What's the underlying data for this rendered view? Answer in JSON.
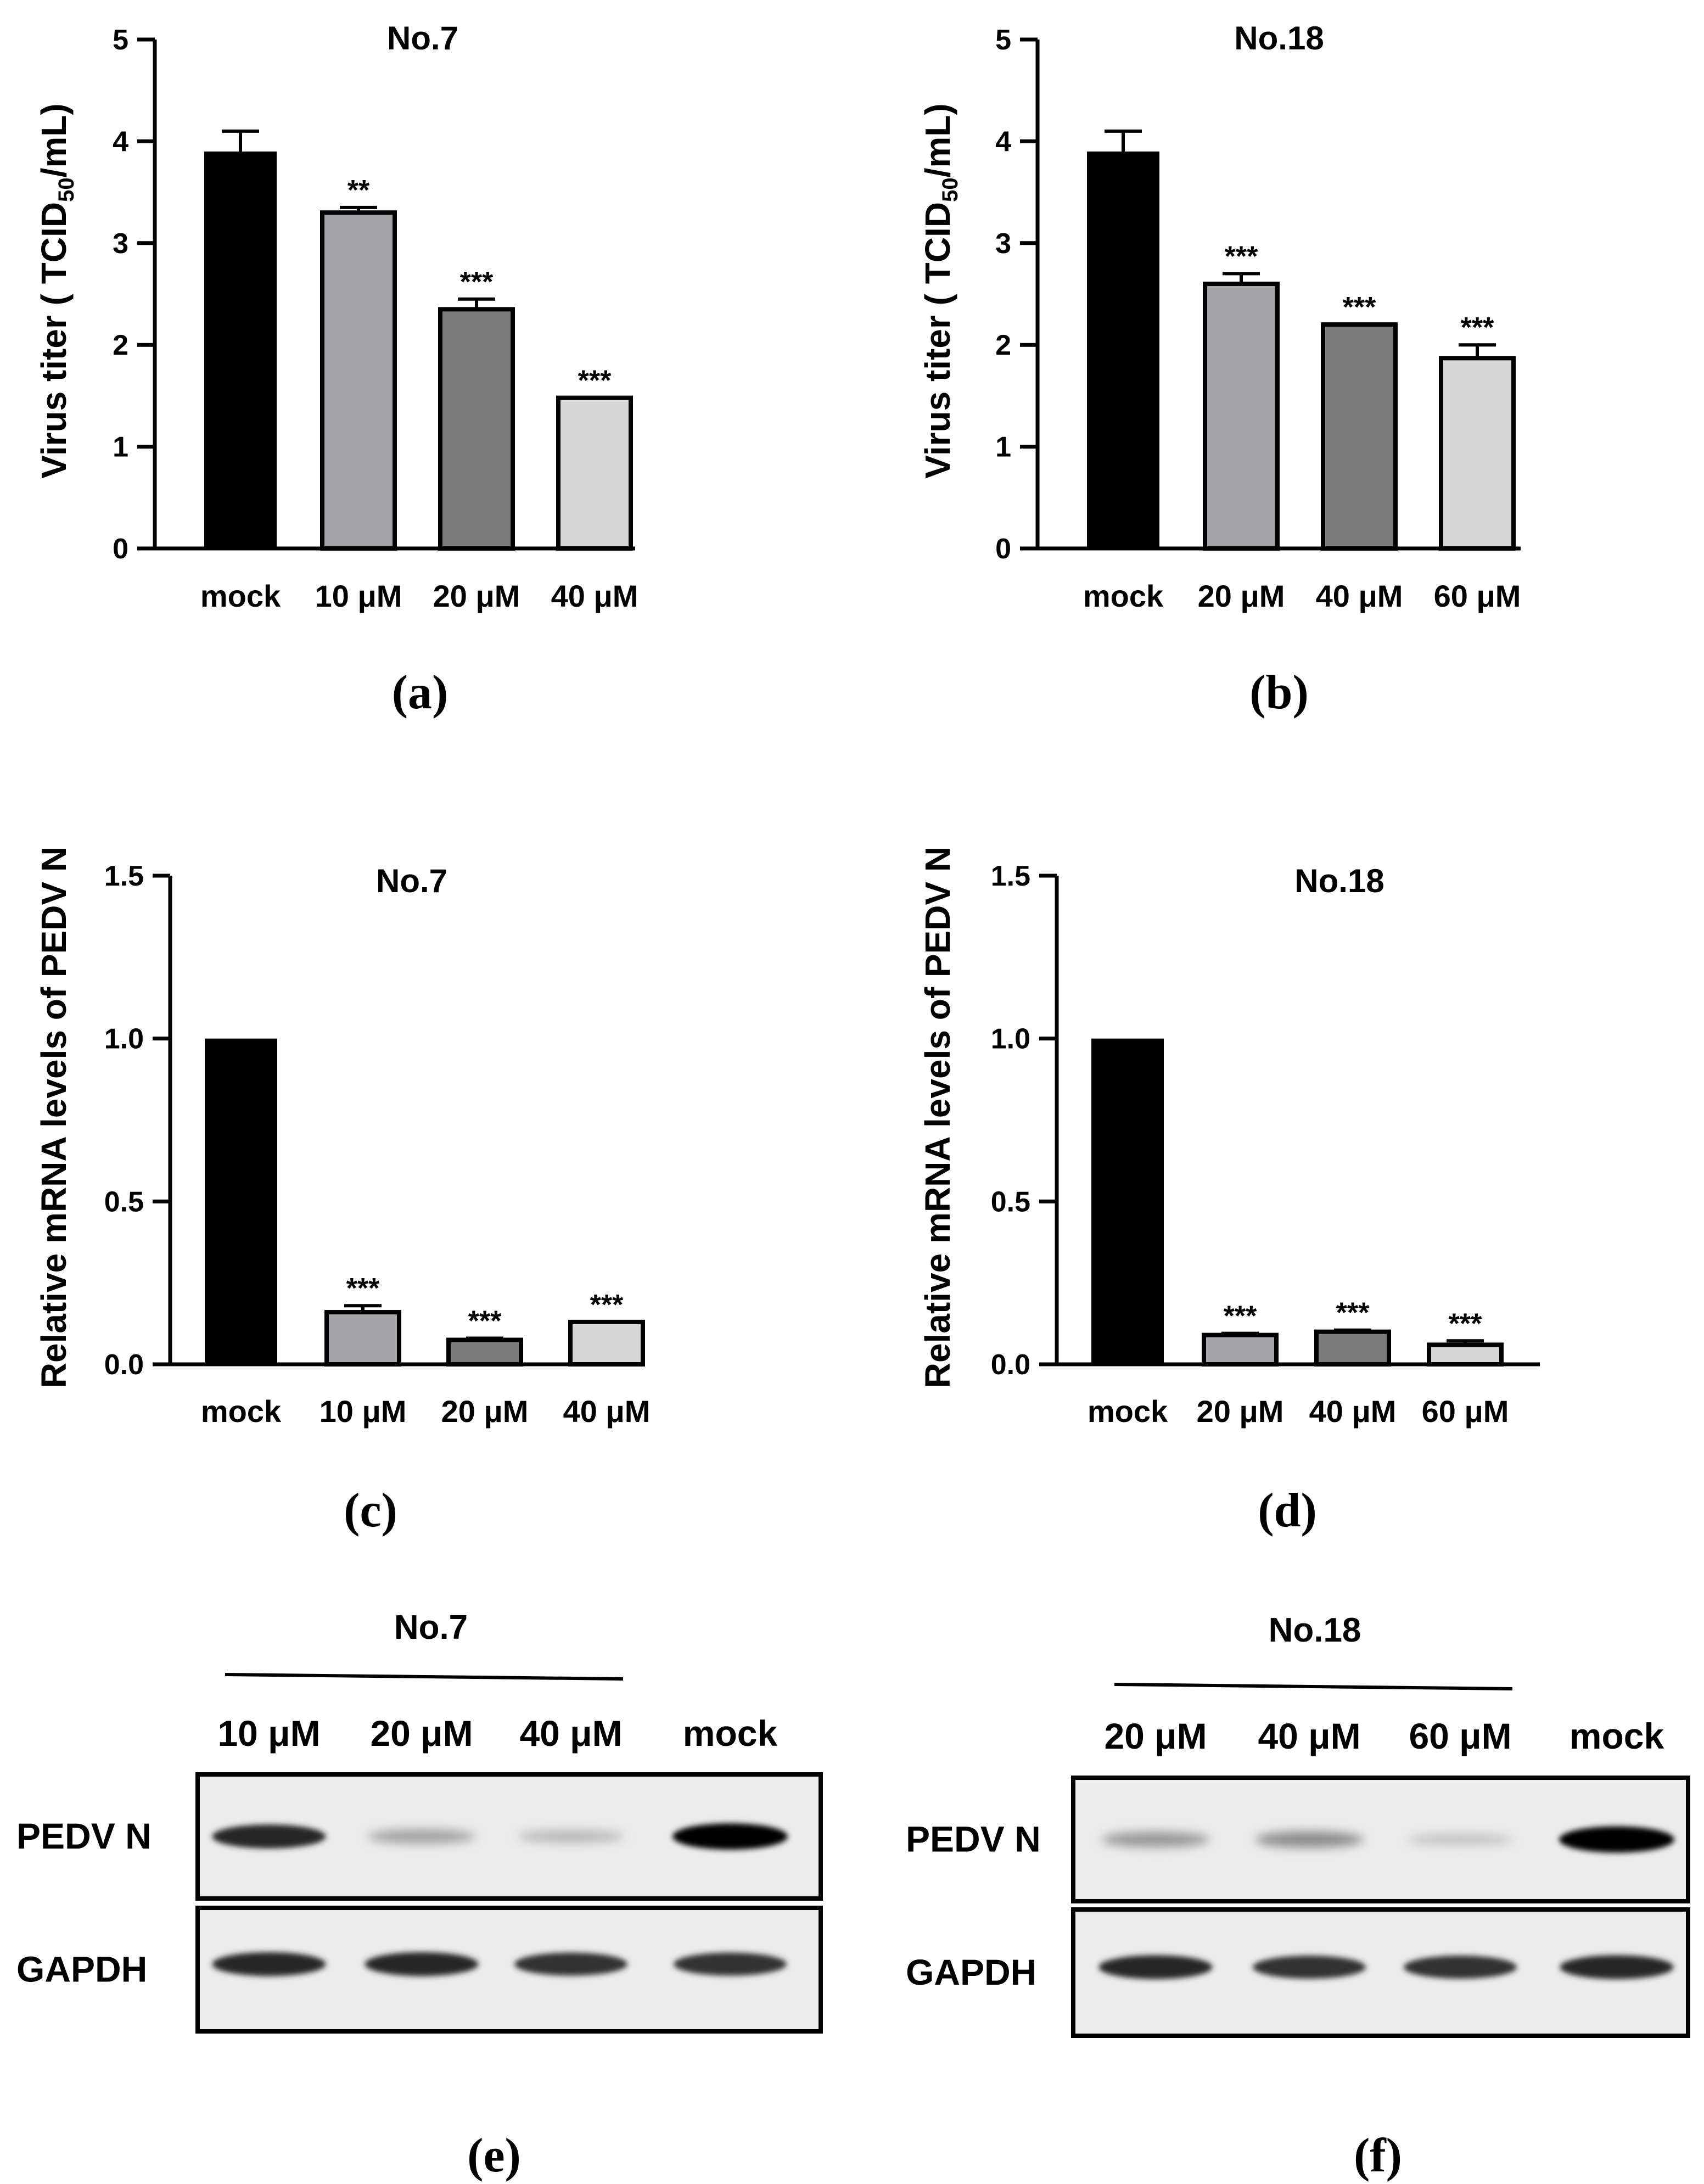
{
  "panel_labels": [
    "(a)",
    "(b)",
    "(c)",
    "(d)",
    "(e)",
    "(f)"
  ],
  "colors": {
    "mock": "#000000",
    "dose1": "#a3a3a8",
    "dose2": "#7c7c7c",
    "dose3": "#d7d7d7",
    "axis": "#000000"
  },
  "chart_data": [
    {
      "type": "bar",
      "panel": "(a)",
      "title": "No.7",
      "ylabel_main": "Virus titer ( TCID",
      "ylabel_sub": "50",
      "ylabel_tail": "/mL)",
      "categories": [
        "mock",
        "10 μM",
        "20 μM",
        "40 μM"
      ],
      "values": [
        3.9,
        3.3,
        2.35,
        1.48
      ],
      "errors": [
        0.2,
        0.05,
        0.1,
        0.0
      ],
      "significance": [
        "",
        "**",
        "***",
        "***"
      ],
      "ylim": [
        0,
        5
      ],
      "yticks": [
        0,
        1,
        2,
        3,
        4,
        5
      ],
      "tick_labels": [
        "0",
        "1",
        "2",
        "3",
        "4",
        "5"
      ]
    },
    {
      "type": "bar",
      "panel": "(b)",
      "title": "No.18",
      "ylabel_main": "Virus titer ( TCID",
      "ylabel_sub": "50",
      "ylabel_tail": "/mL)",
      "categories": [
        "mock",
        "20 μM",
        "40 μM",
        "60 μM"
      ],
      "values": [
        3.9,
        2.6,
        2.2,
        1.87
      ],
      "errors": [
        0.2,
        0.1,
        0.0,
        0.13
      ],
      "significance": [
        "",
        "***",
        "***",
        "***"
      ],
      "ylim": [
        0,
        5
      ],
      "yticks": [
        0,
        1,
        2,
        3,
        4,
        5
      ],
      "tick_labels": [
        "0",
        "1",
        "2",
        "3",
        "4",
        "5"
      ]
    },
    {
      "type": "bar",
      "panel": "(c)",
      "title": "No.7",
      "ylabel_main": "Relative mRNA levels of PEDV N",
      "categories": [
        "mock",
        "10 μM",
        "20 μM",
        "40 μM"
      ],
      "values": [
        1.0,
        0.16,
        0.075,
        0.13
      ],
      "errors": [
        0.0,
        0.02,
        0.005,
        0.0
      ],
      "significance": [
        "",
        "***",
        "***",
        "***"
      ],
      "ylim": [
        0,
        1.5
      ],
      "yticks": [
        0,
        0.5,
        1.0,
        1.5
      ],
      "tick_labels": [
        "0.0",
        "0.5",
        "1.0",
        "1.5"
      ]
    },
    {
      "type": "bar",
      "panel": "(d)",
      "title": "No.18",
      "ylabel_main": "Relative mRNA levels of PEDV N",
      "categories": [
        "mock",
        "20 μM",
        "40 μM",
        "60 μM"
      ],
      "values": [
        1.0,
        0.09,
        0.1,
        0.06
      ],
      "errors": [
        0.0,
        0.005,
        0.005,
        0.012
      ],
      "significance": [
        "",
        "***",
        "***",
        "***"
      ],
      "ylim": [
        0,
        1.5
      ],
      "yticks": [
        0,
        0.5,
        1.0,
        1.5
      ],
      "tick_labels": [
        "0.0",
        "0.5",
        "1.0",
        "1.5"
      ]
    }
  ],
  "blots": [
    {
      "panel": "(e)",
      "title": "No.7",
      "lanes": [
        "10 μM",
        "20 μM",
        "40 μM",
        "mock"
      ],
      "rows": [
        {
          "label": "PEDV N",
          "intensity": [
            0.85,
            0.3,
            0.2,
            1.0
          ]
        },
        {
          "label": "GAPDH",
          "intensity": [
            0.85,
            0.85,
            0.8,
            0.8
          ]
        }
      ]
    },
    {
      "panel": "(f)",
      "title": "No.18",
      "lanes": [
        "20 μM",
        "40 μM",
        "60 μM",
        "mock"
      ],
      "rows": [
        {
          "label": "PEDV N",
          "intensity": [
            0.35,
            0.4,
            0.15,
            1.0
          ]
        },
        {
          "label": "GAPDH",
          "intensity": [
            0.85,
            0.8,
            0.8,
            0.85
          ]
        }
      ]
    }
  ]
}
